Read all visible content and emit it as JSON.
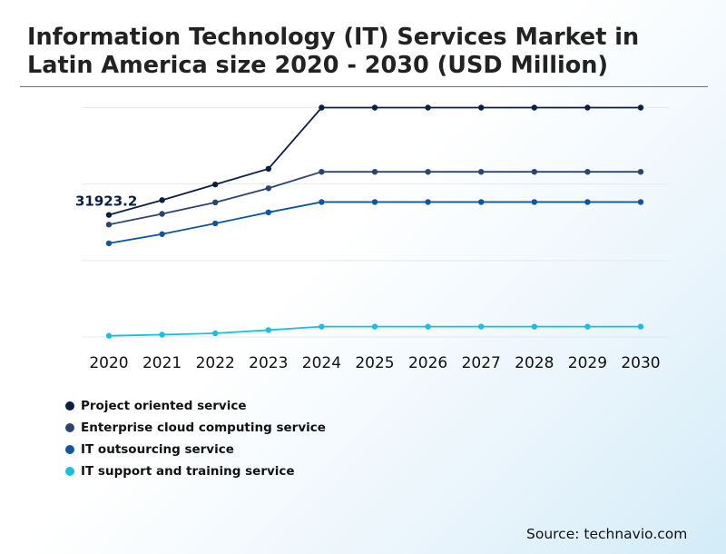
{
  "chart_data": {
    "type": "line",
    "title": "Information Technology (IT) Services Market in Latin America size 2020 - 2030 (USD Million)",
    "categories": [
      "2020",
      "2021",
      "2022",
      "2023",
      "2024",
      "2025",
      "2026",
      "2027",
      "2028",
      "2029",
      "2030"
    ],
    "ylim": [
      0,
      72000
    ],
    "gridlines": [
      0,
      20000,
      40000,
      60000
    ],
    "grid": true,
    "legend_position": "bottom-left",
    "series": [
      {
        "name": "Project oriented service",
        "color": "#0b1f45",
        "values": [
          31923.2,
          35800,
          39900,
          44000,
          60000,
          60000,
          60000,
          60000,
          60000,
          60000,
          60000
        ]
      },
      {
        "name": "Enterprise cloud computing service",
        "color": "#2e4470",
        "values": [
          29400,
          32200,
          35200,
          38900,
          43200,
          43200,
          43200,
          43200,
          43200,
          43200,
          43200
        ]
      },
      {
        "name": "IT outsourcing service",
        "color": "#0f56a0",
        "values": [
          24500,
          26900,
          29700,
          32600,
          35300,
          35300,
          35300,
          35300,
          35300,
          35300,
          35300
        ]
      },
      {
        "name": "IT support and training service",
        "color": "#19bfe3",
        "values": [
          300,
          600,
          950,
          1800,
          2700,
          2700,
          2700,
          2700,
          2700,
          2700,
          2700
        ]
      }
    ],
    "annotations": [
      {
        "text": "31923.2",
        "series": 0,
        "index": 0
      }
    ]
  },
  "header": {
    "title": "Information Technology (IT) Services Market in Latin America size 2020 - 2030 (USD Million)"
  },
  "footer": {
    "source": "Source: technavio.com"
  }
}
